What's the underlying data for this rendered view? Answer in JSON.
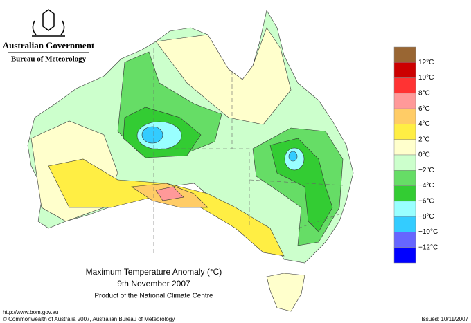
{
  "header": {
    "government": "Australian Government",
    "bureau": "Bureau of Meteorology"
  },
  "legend": {
    "colors": [
      "#996633",
      "#cc0000",
      "#ff3333",
      "#ff9999",
      "#ffcc66",
      "#ffee44",
      "#ffffcc",
      "#ccffcc",
      "#66dd66",
      "#33cc33",
      "#99ffff",
      "#33ccff",
      "#6666ff",
      "#0000ff"
    ],
    "labels": [
      "12°C",
      "10°C",
      "8°C",
      "6°C",
      "4°C",
      "2°C",
      "0°C",
      "−2°C",
      "−4°C",
      "−6°C",
      "−8°C",
      "−10°C",
      "−12°C"
    ]
  },
  "caption": {
    "title": "Maximum Temperature Anomaly (°C)",
    "date": "9th November 2007",
    "subtitle": "Product of the National Climate Centre"
  },
  "footer": {
    "url": "http://www.bom.gov.au",
    "copyright": "© Commonwealth of Australia 2007, Australian Bureau of Meteorology",
    "issued": "Issued: 10/11/2007"
  }
}
